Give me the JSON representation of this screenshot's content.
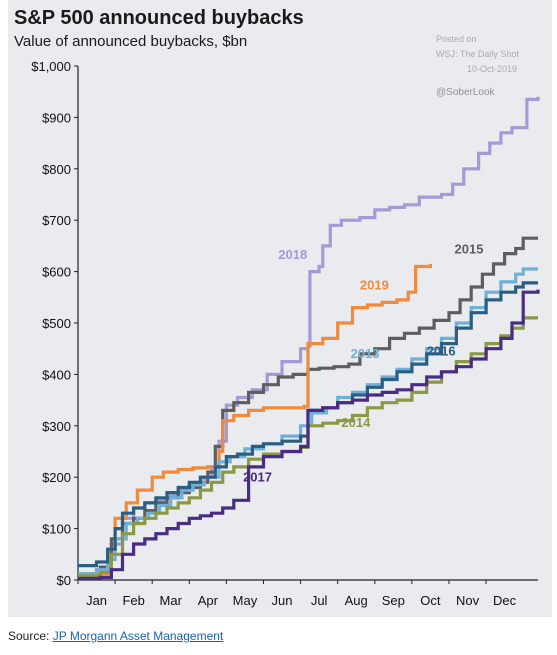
{
  "chart_data": {
    "type": "line",
    "title": "S&P 500 announced buybacks",
    "subtitle": "Value of announced buybacks, $bn",
    "xlabel": "",
    "ylabel": "",
    "categories": [
      "Jan",
      "Feb",
      "Mar",
      "Apr",
      "May",
      "Jun",
      "Jul",
      "Aug",
      "Sep",
      "Oct",
      "Nov",
      "Dec"
    ],
    "ylim": [
      0,
      1000
    ],
    "yticks": [
      {
        "value": 0,
        "label": "$0"
      },
      {
        "value": 100,
        "label": "$100"
      },
      {
        "value": 200,
        "label": "$200"
      },
      {
        "value": 300,
        "label": "$300"
      },
      {
        "value": 400,
        "label": "$400"
      },
      {
        "value": 500,
        "label": "$500"
      },
      {
        "value": 600,
        "label": "$600"
      },
      {
        "value": 700,
        "label": "$700"
      },
      {
        "value": 800,
        "label": "$800"
      },
      {
        "value": 900,
        "label": "$900"
      },
      {
        "value": 1000,
        "label": "$1,000"
      }
    ],
    "grid": false,
    "legend": "inline labels",
    "annotations": {
      "posted": [
        "Posted on",
        "WSJ: The Daily Shot",
        "10-Oct-2019"
      ],
      "credit": "@SoberLook"
    },
    "series": [
      {
        "name": "2018",
        "color": "#a39ad6",
        "label_pos": [
          5.4,
          625
        ],
        "points": [
          [
            0,
            10
          ],
          [
            0.6,
            20
          ],
          [
            0.9,
            70
          ],
          [
            1.2,
            120
          ],
          [
            1.5,
            140
          ],
          [
            1.8,
            150
          ],
          [
            2.1,
            155
          ],
          [
            2.4,
            165
          ],
          [
            2.7,
            175
          ],
          [
            3.0,
            185
          ],
          [
            3.3,
            200
          ],
          [
            3.6,
            220
          ],
          [
            3.8,
            270
          ],
          [
            4.0,
            340
          ],
          [
            4.3,
            355
          ],
          [
            4.7,
            370
          ],
          [
            5.1,
            400
          ],
          [
            5.5,
            425
          ],
          [
            6.0,
            450
          ],
          [
            6.2,
            455
          ],
          [
            6.25,
            600
          ],
          [
            6.5,
            610
          ],
          [
            6.6,
            650
          ],
          [
            6.8,
            690
          ],
          [
            7.1,
            700
          ],
          [
            7.6,
            705
          ],
          [
            8.0,
            720
          ],
          [
            8.4,
            725
          ],
          [
            8.8,
            730
          ],
          [
            9.2,
            745
          ],
          [
            9.8,
            750
          ],
          [
            10.1,
            770
          ],
          [
            10.4,
            800
          ],
          [
            10.8,
            830
          ],
          [
            11.1,
            850
          ],
          [
            11.4,
            870
          ],
          [
            11.7,
            880
          ],
          [
            12.0,
            880
          ],
          [
            12.1,
            935
          ],
          [
            12.4,
            940
          ]
        ]
      },
      {
        "name": "2015",
        "color": "#5e5e60",
        "label_pos": [
          10.15,
          635
        ],
        "points": [
          [
            0,
            12
          ],
          [
            0.6,
            25
          ],
          [
            0.9,
            80
          ],
          [
            1.2,
            110
          ],
          [
            1.5,
            120
          ],
          [
            1.8,
            135
          ],
          [
            2.1,
            150
          ],
          [
            2.4,
            160
          ],
          [
            2.7,
            170
          ],
          [
            3.0,
            180
          ],
          [
            3.3,
            190
          ],
          [
            3.5,
            210
          ],
          [
            3.7,
            260
          ],
          [
            3.9,
            330
          ],
          [
            4.2,
            345
          ],
          [
            4.6,
            365
          ],
          [
            5.0,
            380
          ],
          [
            5.4,
            395
          ],
          [
            5.8,
            400
          ],
          [
            6.2,
            410
          ],
          [
            6.5,
            412
          ],
          [
            6.9,
            415
          ],
          [
            7.3,
            420
          ],
          [
            7.6,
            440
          ],
          [
            8.0,
            450
          ],
          [
            8.4,
            470
          ],
          [
            8.8,
            480
          ],
          [
            9.2,
            490
          ],
          [
            9.6,
            505
          ],
          [
            10.0,
            520
          ],
          [
            10.3,
            545
          ],
          [
            10.6,
            570
          ],
          [
            10.9,
            595
          ],
          [
            11.2,
            615
          ],
          [
            11.5,
            635
          ],
          [
            11.8,
            645
          ],
          [
            12.0,
            665
          ],
          [
            12.4,
            665
          ]
        ]
      },
      {
        "name": "2019",
        "color": "#f08a3c",
        "label_pos": [
          7.6,
          565
        ],
        "points": [
          [
            0,
            5
          ],
          [
            0.5,
            12
          ],
          [
            0.8,
            60
          ],
          [
            1.0,
            120
          ],
          [
            1.3,
            150
          ],
          [
            1.6,
            175
          ],
          [
            2.0,
            200
          ],
          [
            2.3,
            210
          ],
          [
            2.7,
            215
          ],
          [
            3.1,
            218
          ],
          [
            3.5,
            220
          ],
          [
            3.8,
            250
          ],
          [
            3.9,
            310
          ],
          [
            4.2,
            320
          ],
          [
            4.6,
            330
          ],
          [
            5.0,
            335
          ],
          [
            5.5,
            335
          ],
          [
            6.1,
            338
          ],
          [
            6.2,
            460
          ],
          [
            6.6,
            470
          ],
          [
            7.0,
            500
          ],
          [
            7.4,
            530
          ],
          [
            7.8,
            535
          ],
          [
            8.2,
            540
          ],
          [
            8.6,
            545
          ],
          [
            8.9,
            560
          ],
          [
            9.1,
            610
          ],
          [
            9.5,
            615
          ]
        ]
      },
      {
        "name": "2013",
        "color": "#6fb0d6",
        "label_pos": [
          7.35,
          432
        ],
        "points": [
          [
            0,
            12
          ],
          [
            0.5,
            20
          ],
          [
            0.8,
            40
          ],
          [
            1.0,
            80
          ],
          [
            1.3,
            110
          ],
          [
            1.6,
            120
          ],
          [
            1.9,
            130
          ],
          [
            2.2,
            145
          ],
          [
            2.5,
            160
          ],
          [
            2.8,
            175
          ],
          [
            3.1,
            185
          ],
          [
            3.4,
            200
          ],
          [
            3.8,
            230
          ],
          [
            4.1,
            240
          ],
          [
            4.5,
            255
          ],
          [
            5.0,
            265
          ],
          [
            5.5,
            280
          ],
          [
            6.0,
            300
          ],
          [
            6.3,
            325
          ],
          [
            6.7,
            335
          ],
          [
            7.0,
            355
          ],
          [
            7.4,
            365
          ],
          [
            7.8,
            380
          ],
          [
            8.2,
            395
          ],
          [
            8.6,
            410
          ],
          [
            9.0,
            430
          ],
          [
            9.4,
            450
          ],
          [
            9.8,
            470
          ],
          [
            10.2,
            500
          ],
          [
            10.6,
            530
          ],
          [
            11.0,
            560
          ],
          [
            11.4,
            580
          ],
          [
            11.8,
            595
          ],
          [
            12.0,
            605
          ],
          [
            12.4,
            605
          ]
        ]
      },
      {
        "name": "2016",
        "color": "#2a5f82",
        "label_pos": [
          9.4,
          437
        ],
        "points": [
          [
            0,
            28
          ],
          [
            0.5,
            35
          ],
          [
            0.8,
            60
          ],
          [
            1.0,
            100
          ],
          [
            1.2,
            130
          ],
          [
            1.5,
            140
          ],
          [
            1.8,
            150
          ],
          [
            2.1,
            160
          ],
          [
            2.4,
            170
          ],
          [
            2.7,
            180
          ],
          [
            3.0,
            190
          ],
          [
            3.3,
            200
          ],
          [
            3.7,
            220
          ],
          [
            4.0,
            240
          ],
          [
            4.3,
            245
          ],
          [
            4.7,
            260
          ],
          [
            5.0,
            265
          ],
          [
            5.5,
            270
          ],
          [
            6.0,
            280
          ],
          [
            6.2,
            330
          ],
          [
            6.6,
            335
          ],
          [
            7.0,
            345
          ],
          [
            7.4,
            360
          ],
          [
            7.8,
            375
          ],
          [
            8.2,
            390
          ],
          [
            8.6,
            405
          ],
          [
            9.0,
            420
          ],
          [
            9.4,
            440
          ],
          [
            9.8,
            460
          ],
          [
            10.2,
            490
          ],
          [
            10.6,
            520
          ],
          [
            11.0,
            545
          ],
          [
            11.4,
            560
          ],
          [
            11.8,
            570
          ],
          [
            12.0,
            578
          ],
          [
            12.4,
            578
          ]
        ]
      },
      {
        "name": "2014",
        "color": "#8b9945",
        "label_pos": [
          7.1,
          298
        ],
        "points": [
          [
            0,
            8
          ],
          [
            0.6,
            15
          ],
          [
            0.9,
            50
          ],
          [
            1.2,
            90
          ],
          [
            1.5,
            110
          ],
          [
            1.8,
            120
          ],
          [
            2.1,
            130
          ],
          [
            2.4,
            140
          ],
          [
            2.7,
            150
          ],
          [
            3.0,
            160
          ],
          [
            3.3,
            175
          ],
          [
            3.6,
            190
          ],
          [
            3.9,
            210
          ],
          [
            4.2,
            220
          ],
          [
            4.6,
            235
          ],
          [
            5.0,
            245
          ],
          [
            5.5,
            250
          ],
          [
            6.0,
            258
          ],
          [
            6.2,
            300
          ],
          [
            6.6,
            305
          ],
          [
            7.0,
            310
          ],
          [
            7.4,
            320
          ],
          [
            7.8,
            335
          ],
          [
            8.2,
            345
          ],
          [
            8.6,
            350
          ],
          [
            9.0,
            365
          ],
          [
            9.4,
            385
          ],
          [
            9.8,
            405
          ],
          [
            10.2,
            425
          ],
          [
            10.6,
            440
          ],
          [
            11.0,
            460
          ],
          [
            11.4,
            475
          ],
          [
            11.7,
            490
          ],
          [
            12.0,
            510
          ],
          [
            12.4,
            510
          ]
        ]
      },
      {
        "name": "2017",
        "color": "#4a2c82",
        "label_pos": [
          4.45,
          192
        ],
        "points": [
          [
            0,
            3
          ],
          [
            0.6,
            5
          ],
          [
            0.9,
            20
          ],
          [
            1.2,
            50
          ],
          [
            1.5,
            70
          ],
          [
            1.8,
            80
          ],
          [
            2.1,
            90
          ],
          [
            2.4,
            100
          ],
          [
            2.7,
            110
          ],
          [
            3.0,
            120
          ],
          [
            3.3,
            125
          ],
          [
            3.6,
            130
          ],
          [
            3.9,
            140
          ],
          [
            4.2,
            155
          ],
          [
            4.6,
            220
          ],
          [
            5.0,
            240
          ],
          [
            5.5,
            250
          ],
          [
            6.0,
            260
          ],
          [
            6.2,
            330
          ],
          [
            6.6,
            335
          ],
          [
            7.0,
            345
          ],
          [
            7.4,
            350
          ],
          [
            7.8,
            360
          ],
          [
            8.2,
            365
          ],
          [
            8.6,
            370
          ],
          [
            9.0,
            380
          ],
          [
            9.4,
            395
          ],
          [
            9.8,
            405
          ],
          [
            10.2,
            415
          ],
          [
            10.6,
            430
          ],
          [
            11.0,
            450
          ],
          [
            11.4,
            470
          ],
          [
            11.7,
            500
          ],
          [
            12.0,
            560
          ],
          [
            12.4,
            565
          ]
        ]
      }
    ]
  },
  "source": {
    "prefix": "Source: ",
    "link_text": "JP Morgann Asset Management"
  }
}
